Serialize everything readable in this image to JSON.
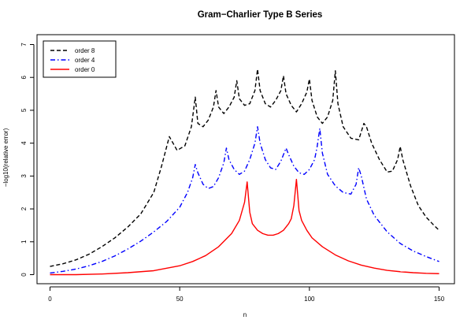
{
  "chart_data": {
    "type": "line",
    "title": "Gram−Charlier Type B Series",
    "xlabel": "n",
    "ylabel": "−log10(relative error)",
    "xlim": [
      0,
      150
    ],
    "ylim": [
      0,
      7
    ],
    "xticks": [
      0,
      50,
      100,
      150
    ],
    "yticks": [
      0,
      1,
      2,
      3,
      4,
      5,
      6,
      7
    ],
    "grid": false,
    "legend_position": "top-left",
    "series": [
      {
        "name": "order 8",
        "color": "#000000",
        "dash": "dashed",
        "points": [
          [
            0,
            0.25
          ],
          [
            5,
            0.33
          ],
          [
            10,
            0.45
          ],
          [
            15,
            0.62
          ],
          [
            20,
            0.85
          ],
          [
            25,
            1.12
          ],
          [
            30,
            1.45
          ],
          [
            35,
            1.85
          ],
          [
            40,
            2.5
          ],
          [
            43,
            3.3
          ],
          [
            46,
            4.2
          ],
          [
            49,
            3.78
          ],
          [
            52,
            3.92
          ],
          [
            54.5,
            4.5
          ],
          [
            56,
            5.4
          ],
          [
            57,
            4.6
          ],
          [
            59,
            4.5
          ],
          [
            61,
            4.7
          ],
          [
            63,
            5.1
          ],
          [
            64,
            5.6
          ],
          [
            65,
            5.1
          ],
          [
            67,
            4.9
          ],
          [
            69,
            5.1
          ],
          [
            71,
            5.4
          ],
          [
            72,
            5.9
          ],
          [
            73,
            5.35
          ],
          [
            75,
            5.15
          ],
          [
            77,
            5.2
          ],
          [
            79,
            5.6
          ],
          [
            80,
            6.25
          ],
          [
            81,
            5.6
          ],
          [
            83,
            5.2
          ],
          [
            85,
            5.1
          ],
          [
            87,
            5.3
          ],
          [
            89,
            5.6
          ],
          [
            90,
            6.05
          ],
          [
            91,
            5.5
          ],
          [
            93,
            5.15
          ],
          [
            95,
            4.95
          ],
          [
            97,
            5.2
          ],
          [
            99,
            5.55
          ],
          [
            100,
            5.95
          ],
          [
            101,
            5.3
          ],
          [
            103,
            4.8
          ],
          [
            105,
            4.6
          ],
          [
            107,
            4.8
          ],
          [
            109,
            5.3
          ],
          [
            110,
            6.2
          ],
          [
            111,
            5.2
          ],
          [
            113,
            4.5
          ],
          [
            116,
            4.15
          ],
          [
            119,
            4.1
          ],
          [
            121,
            4.6
          ],
          [
            122,
            4.5
          ],
          [
            124,
            4.0
          ],
          [
            127,
            3.5
          ],
          [
            130,
            3.12
          ],
          [
            132,
            3.15
          ],
          [
            134,
            3.5
          ],
          [
            135,
            3.9
          ],
          [
            136,
            3.5
          ],
          [
            139,
            2.7
          ],
          [
            142,
            2.1
          ],
          [
            145,
            1.75
          ],
          [
            148,
            1.5
          ],
          [
            150,
            1.35
          ]
        ]
      },
      {
        "name": "order 4",
        "color": "#0000ff",
        "dash": "dashdot",
        "points": [
          [
            0,
            0.05
          ],
          [
            5,
            0.1
          ],
          [
            10,
            0.17
          ],
          [
            15,
            0.27
          ],
          [
            20,
            0.4
          ],
          [
            25,
            0.57
          ],
          [
            30,
            0.78
          ],
          [
            35,
            1.02
          ],
          [
            40,
            1.3
          ],
          [
            45,
            1.62
          ],
          [
            50,
            2.05
          ],
          [
            53,
            2.5
          ],
          [
            55,
            2.95
          ],
          [
            56,
            3.35
          ],
          [
            57,
            3.1
          ],
          [
            59,
            2.75
          ],
          [
            61,
            2.62
          ],
          [
            63,
            2.68
          ],
          [
            65,
            2.95
          ],
          [
            67,
            3.4
          ],
          [
            68,
            3.85
          ],
          [
            69,
            3.5
          ],
          [
            71,
            3.2
          ],
          [
            73,
            3.05
          ],
          [
            75,
            3.15
          ],
          [
            77,
            3.5
          ],
          [
            79,
            4.0
          ],
          [
            80,
            4.5
          ],
          [
            81,
            4.0
          ],
          [
            83,
            3.5
          ],
          [
            85,
            3.25
          ],
          [
            87,
            3.2
          ],
          [
            89,
            3.45
          ],
          [
            91,
            3.85
          ],
          [
            92,
            3.65
          ],
          [
            94,
            3.3
          ],
          [
            96,
            3.1
          ],
          [
            98,
            3.05
          ],
          [
            100,
            3.2
          ],
          [
            102,
            3.5
          ],
          [
            103,
            3.9
          ],
          [
            104,
            4.45
          ],
          [
            105,
            3.7
          ],
          [
            107,
            3.05
          ],
          [
            110,
            2.7
          ],
          [
            113,
            2.5
          ],
          [
            116,
            2.45
          ],
          [
            118,
            2.75
          ],
          [
            119,
            3.25
          ],
          [
            120,
            3.0
          ],
          [
            122,
            2.3
          ],
          [
            125,
            1.8
          ],
          [
            130,
            1.3
          ],
          [
            135,
            0.95
          ],
          [
            140,
            0.72
          ],
          [
            145,
            0.55
          ],
          [
            150,
            0.4
          ]
        ]
      },
      {
        "name": "order 0",
        "color": "#ff0000",
        "dash": "solid",
        "points": [
          [
            0,
            0.0
          ],
          [
            10,
            0.0
          ],
          [
            20,
            0.02
          ],
          [
            30,
            0.06
          ],
          [
            40,
            0.12
          ],
          [
            50,
            0.27
          ],
          [
            55,
            0.4
          ],
          [
            60,
            0.58
          ],
          [
            65,
            0.85
          ],
          [
            70,
            1.25
          ],
          [
            73,
            1.65
          ],
          [
            75,
            2.2
          ],
          [
            76,
            2.82
          ],
          [
            77,
            1.9
          ],
          [
            78,
            1.55
          ],
          [
            80,
            1.35
          ],
          [
            82,
            1.25
          ],
          [
            84,
            1.2
          ],
          [
            86,
            1.2
          ],
          [
            88,
            1.25
          ],
          [
            90,
            1.35
          ],
          [
            92,
            1.55
          ],
          [
            93,
            1.7
          ],
          [
            94,
            2.1
          ],
          [
            95,
            2.9
          ],
          [
            96,
            1.95
          ],
          [
            97,
            1.65
          ],
          [
            99,
            1.35
          ],
          [
            101,
            1.12
          ],
          [
            105,
            0.85
          ],
          [
            110,
            0.6
          ],
          [
            115,
            0.42
          ],
          [
            120,
            0.29
          ],
          [
            125,
            0.2
          ],
          [
            130,
            0.13
          ],
          [
            135,
            0.09
          ],
          [
            140,
            0.06
          ],
          [
            145,
            0.04
          ],
          [
            150,
            0.03
          ]
        ]
      }
    ]
  }
}
